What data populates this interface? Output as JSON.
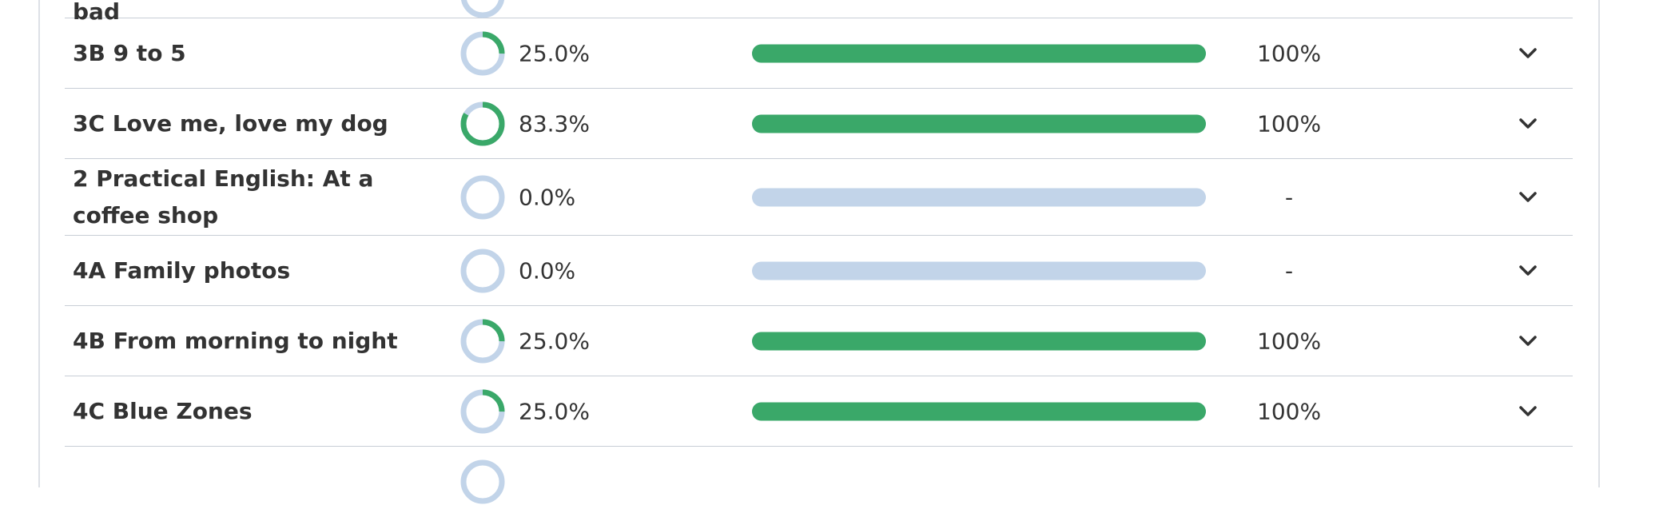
{
  "partial_top_title": "bad",
  "rows": [
    {
      "title": "3B 9 to 5",
      "completion": {
        "value": 25,
        "label": "25.0%"
      },
      "score": {
        "value": 100,
        "label": "100%"
      }
    },
    {
      "title": "3C Love me, love my dog",
      "completion": {
        "value": 83.3,
        "label": "83.3%"
      },
      "score": {
        "value": 100,
        "label": "100%"
      }
    },
    {
      "title": "2 Practical English: At a coffee shop",
      "completion": {
        "value": 0,
        "label": "0.0%"
      },
      "score": {
        "value": null,
        "label": "-"
      }
    },
    {
      "title": "4A Family photos",
      "completion": {
        "value": 0,
        "label": "0.0%"
      },
      "score": {
        "value": null,
        "label": "-"
      }
    },
    {
      "title": "4B From morning to night",
      "completion": {
        "value": 25,
        "label": "25.0%"
      },
      "score": {
        "value": 100,
        "label": "100%"
      }
    },
    {
      "title": "4C Blue Zones",
      "completion": {
        "value": 25,
        "label": "25.0%"
      },
      "score": {
        "value": 100,
        "label": "100%"
      }
    }
  ]
}
